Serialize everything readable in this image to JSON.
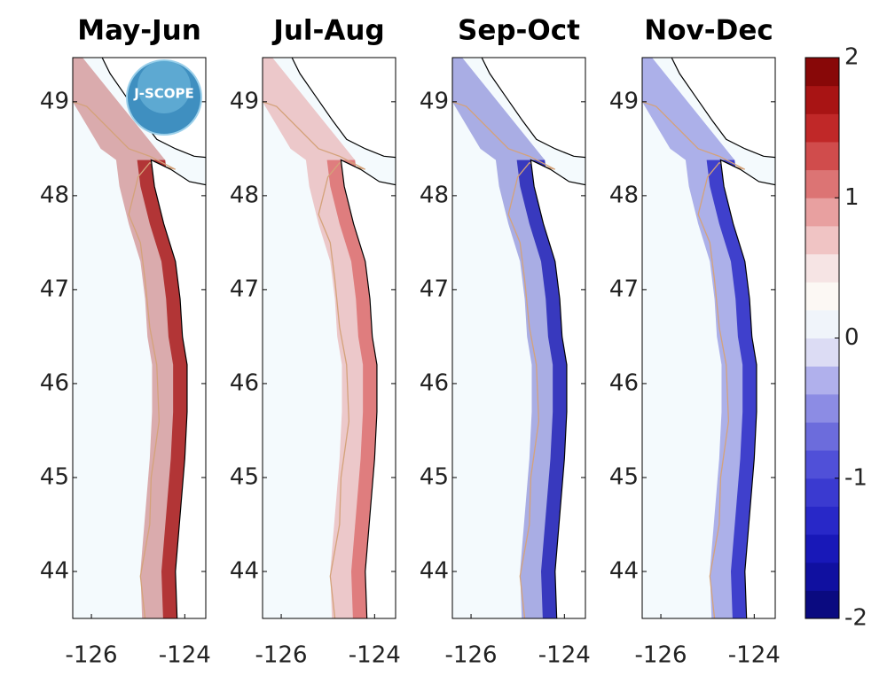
{
  "chart_data": [
    {
      "type": "map",
      "title": "May-Jun",
      "color": "#a81818",
      "xlim": [
        -126.4,
        -123.55
      ],
      "ylim": [
        43.5,
        49.47
      ],
      "xticks": [
        -126,
        -124
      ],
      "yticks": [
        44,
        45,
        46,
        47,
        48,
        49
      ]
    },
    {
      "type": "map",
      "title": "Jul-Aug",
      "color": "#dc6a6a",
      "xlim": [
        -126.4,
        -123.55
      ],
      "ylim": [
        43.5,
        49.47
      ],
      "xticks": [
        -126,
        -124
      ],
      "yticks": [
        44,
        45,
        46,
        47,
        48,
        49
      ]
    },
    {
      "type": "map",
      "title": "Sep-Oct",
      "color": "#1c1cb4",
      "xlim": [
        -126.4,
        -123.55
      ],
      "ylim": [
        43.5,
        49.47
      ],
      "xticks": [
        -126,
        -124
      ],
      "yticks": [
        44,
        45,
        46,
        47,
        48,
        49
      ]
    },
    {
      "type": "map",
      "title": "Nov-Dec",
      "color": "#2424c4",
      "xlim": [
        -126.4,
        -123.55
      ],
      "ylim": [
        43.5,
        49.47
      ],
      "xticks": [
        -126,
        -124
      ],
      "yticks": [
        44,
        45,
        46,
        47,
        48,
        49
      ]
    }
  ],
  "colorbar": {
    "clim": [
      -2,
      2
    ],
    "ticks": [
      -2,
      -1,
      0,
      1,
      2
    ],
    "colors": [
      "#0a0a80",
      "#1010a0",
      "#1818b8",
      "#2828c8",
      "#3a3ad0",
      "#5050d8",
      "#6c6cdc",
      "#8c8ce4",
      "#b0b0ec",
      "#dcdcf4",
      "#f0f4fa",
      "#fcf8f4",
      "#f6e4e4",
      "#f0c4c4",
      "#e8a0a0",
      "#dc7474",
      "#d04c4c",
      "#c02828",
      "#a81414",
      "#880808"
    ]
  },
  "logo": {
    "text": "J-SCOPE"
  }
}
